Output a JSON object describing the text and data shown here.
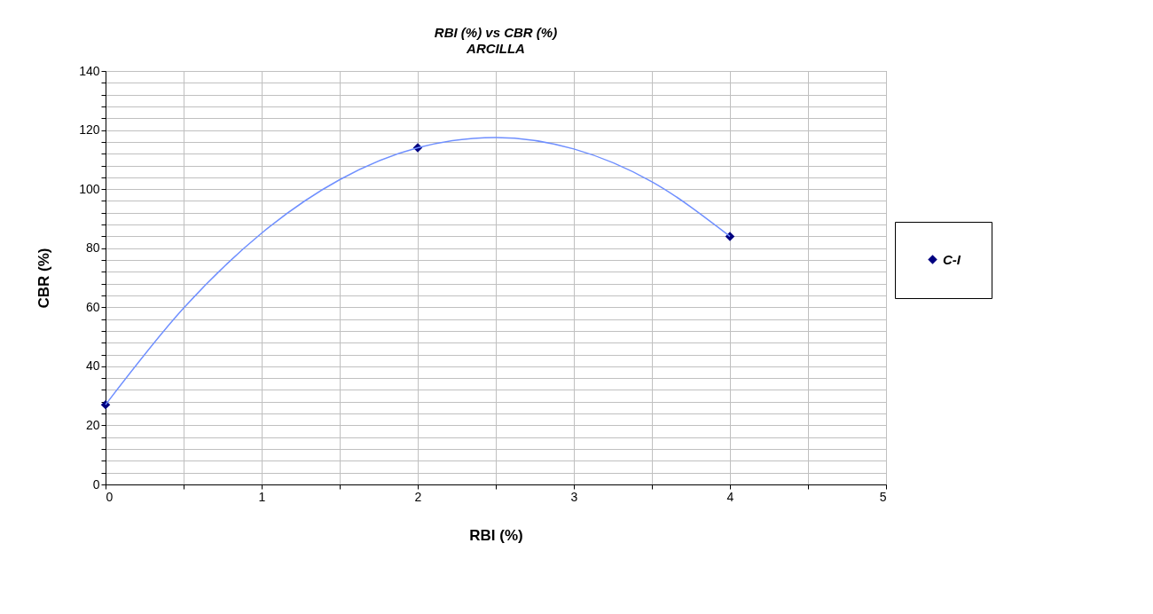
{
  "chart_data": {
    "type": "scatter",
    "title": "RBI (%) vs CBR (%)",
    "subtitle": "ARCILLA",
    "xlabel": "RBI (%)",
    "ylabel": "CBR (%)",
    "xlim": [
      0,
      5
    ],
    "ylim": [
      0,
      140
    ],
    "xticks": [
      0,
      {
        "value": 0.5,
        "label": null
      },
      1,
      {
        "value": 1.5,
        "label": null
      },
      2,
      {
        "value": 2.5,
        "label": null
      },
      3,
      {
        "value": 3.5,
        "label": null
      },
      4,
      {
        "value": 4.5,
        "label": null
      },
      5
    ],
    "yticks": [
      0,
      {
        "value": 4,
        "label": null
      },
      {
        "value": 8,
        "label": null
      },
      {
        "value": 12,
        "label": null
      },
      {
        "value": 16,
        "label": null
      },
      20,
      {
        "value": 24,
        "label": null
      },
      {
        "value": 28,
        "label": null
      },
      {
        "value": 32,
        "label": null
      },
      {
        "value": 36,
        "label": null
      },
      40,
      {
        "value": 44,
        "label": null
      },
      {
        "value": 48,
        "label": null
      },
      {
        "value": 52,
        "label": null
      },
      {
        "value": 56,
        "label": null
      },
      60,
      {
        "value": 64,
        "label": null
      },
      {
        "value": 68,
        "label": null
      },
      {
        "value": 72,
        "label": null
      },
      {
        "value": 76,
        "label": null
      },
      80,
      {
        "value": 84,
        "label": null
      },
      {
        "value": 88,
        "label": null
      },
      {
        "value": 92,
        "label": null
      },
      {
        "value": 96,
        "label": null
      },
      100,
      {
        "value": 104,
        "label": null
      },
      {
        "value": 108,
        "label": null
      },
      {
        "value": 112,
        "label": null
      },
      {
        "value": 116,
        "label": null
      },
      120,
      {
        "value": 124,
        "label": null
      },
      {
        "value": 128,
        "label": null
      },
      {
        "value": 132,
        "label": null
      },
      {
        "value": 136,
        "label": null
      },
      140
    ],
    "grid": true,
    "legend": "right",
    "series": [
      {
        "name": "C-I",
        "marker": "diamond",
        "color": "#000080",
        "x": [
          0,
          2,
          4
        ],
        "values": [
          27,
          114,
          84
        ]
      },
      {
        "type": "line",
        "marker": "none",
        "color": "#6f8fff",
        "line_style": "solid",
        "x": [
          0,
          0.5,
          1,
          1.5,
          2,
          2.5,
          3,
          3.5,
          4
        ],
        "values": [
          27,
          59.7,
          85.1,
          103.2,
          114,
          117.5,
          113.6,
          102.5,
          84
        ]
      }
    ]
  }
}
